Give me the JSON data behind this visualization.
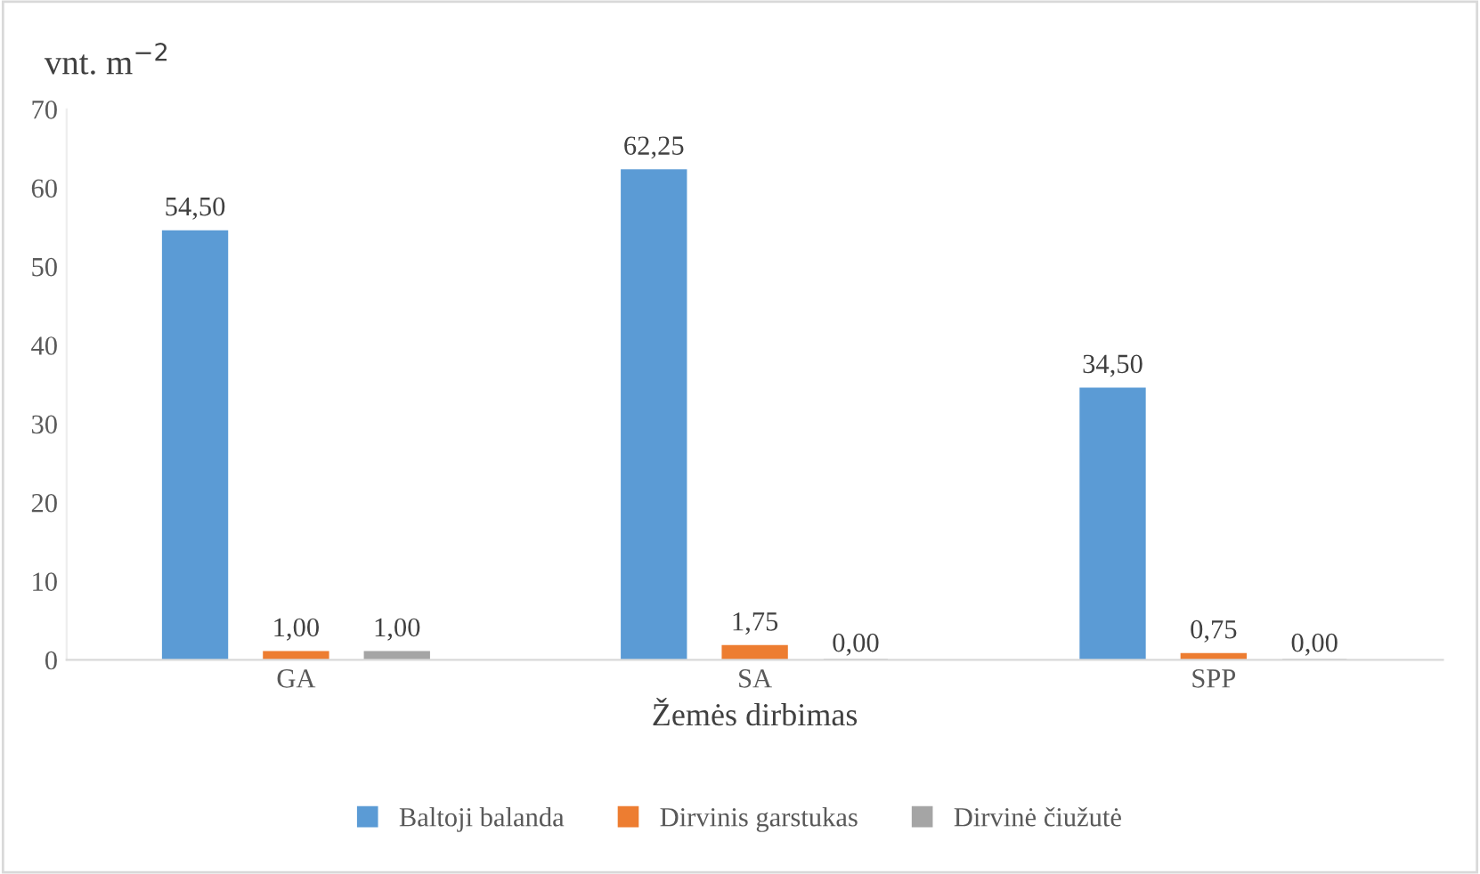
{
  "chart_data": {
    "type": "bar",
    "ylabel": "vnt. m$^{−2}$",
    "xlabel": "Žemės dirbimas",
    "categories": [
      "GA",
      "SA",
      "SPP"
    ],
    "series": [
      {
        "name": "Baltoji balanda",
        "color": "#5b9bd5",
        "values": [
          54.5,
          62.25,
          34.5
        ],
        "value_labels": [
          "54,50",
          "62,25",
          "34,50"
        ]
      },
      {
        "name": "Dirvinis garstukas",
        "color": "#ed7d31",
        "values": [
          1.0,
          1.75,
          0.75
        ],
        "value_labels": [
          "1,00",
          "1,75",
          "0,75"
        ]
      },
      {
        "name": "Dirvinė čiužutė",
        "color": "#a5a5a5",
        "values": [
          1.0,
          0.0,
          0.0
        ],
        "value_labels": [
          "1,00",
          "0,00",
          "0,00"
        ]
      }
    ],
    "ylim": [
      0,
      70
    ],
    "yticks": [
      0,
      10,
      20,
      30,
      40,
      50,
      60,
      70
    ],
    "grid": false,
    "legend": "bottom"
  }
}
